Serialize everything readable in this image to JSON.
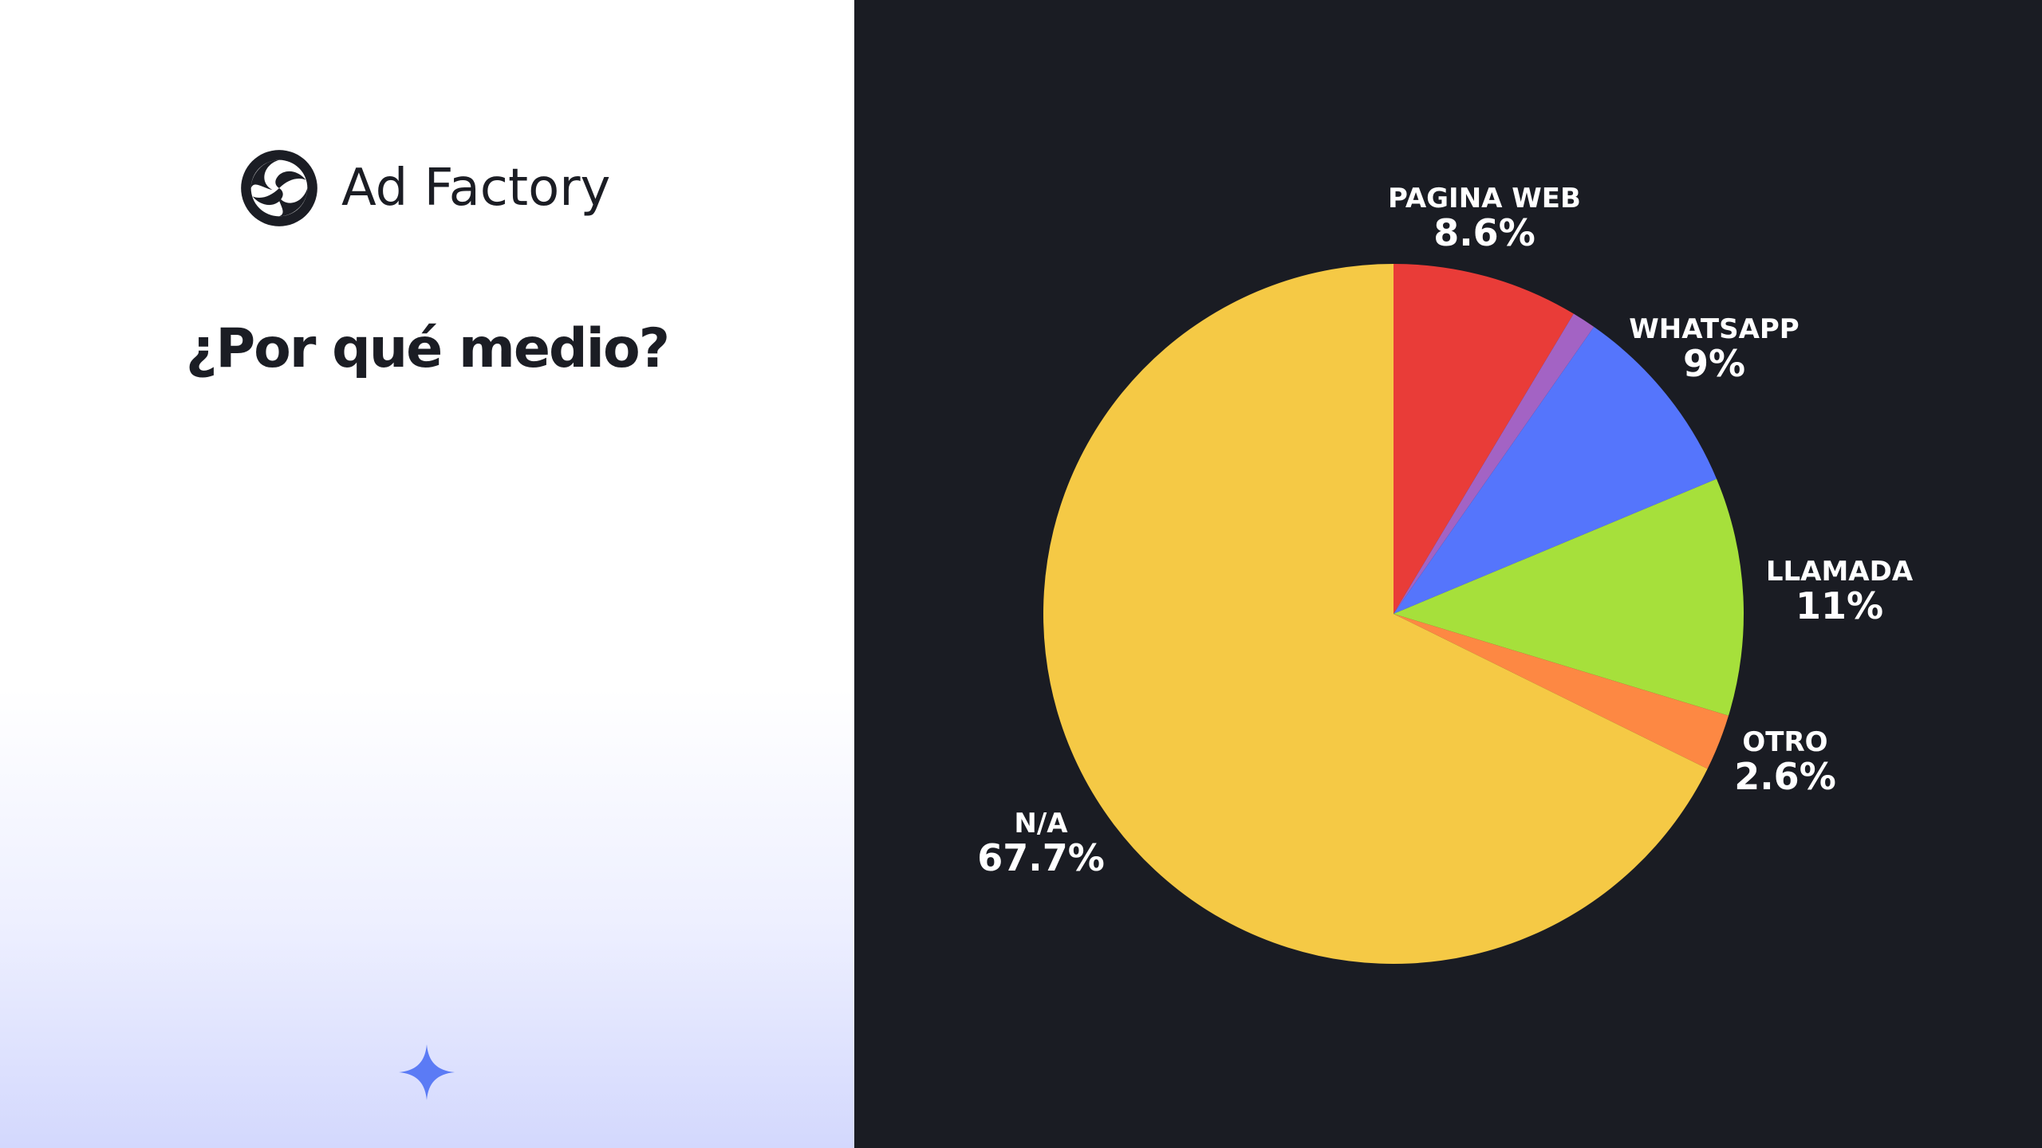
{
  "brand": {
    "name": "Ad Factory"
  },
  "slide": {
    "title": "¿Por qué medio?"
  },
  "colors": {
    "background_dark": "#1a1c23",
    "text_dark": "#1b1d24",
    "accent_sparkle": "#5b7bf5"
  },
  "icons": {
    "logo": "ad-factory-logo-icon",
    "decoration": "four-point-star-icon"
  },
  "chart_data": {
    "type": "pie",
    "start_angle_deg": 0,
    "direction": "clockwise",
    "slices": [
      {
        "label": "PAGINA WEB",
        "value": 8.6,
        "display": "8.6%",
        "color": "#e93c38"
      },
      {
        "label": "",
        "value": 1.1,
        "display": "",
        "color": "#a363c4"
      },
      {
        "label": "WHATSAPP",
        "value": 9,
        "display": "9%",
        "color": "#5575fc"
      },
      {
        "label": "LLAMADA",
        "value": 11,
        "display": "11%",
        "color": "#a6e03b"
      },
      {
        "label": "OTRO",
        "value": 2.6,
        "display": "2.6%",
        "color": "#fd8843"
      },
      {
        "label": "N/A",
        "value": 67.7,
        "display": "67.7%",
        "color": "#f5c945"
      }
    ]
  }
}
